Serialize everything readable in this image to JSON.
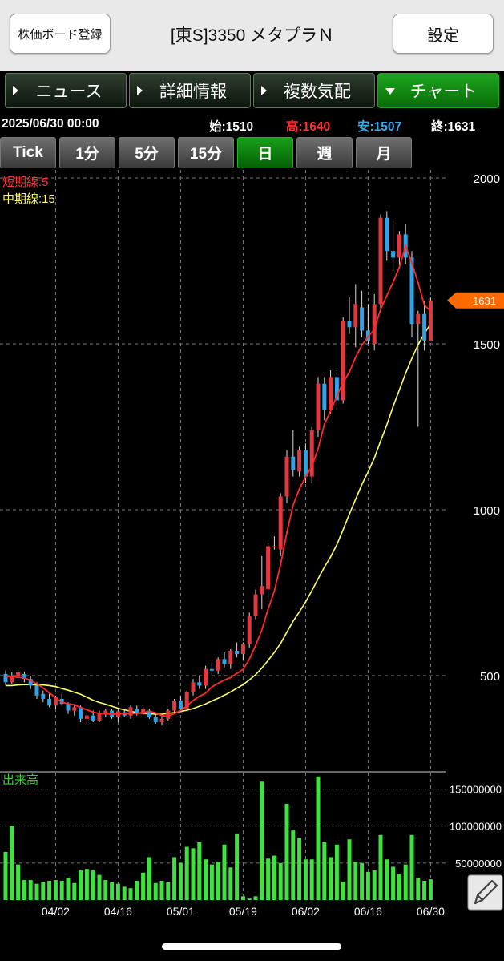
{
  "header": {
    "register_label": "株価ボード登録",
    "title": "[東S]3350 メタプラＮ",
    "settings_label": "設定"
  },
  "tabs": [
    {
      "label": "ニュース",
      "active": false
    },
    {
      "label": "詳細情報",
      "active": false
    },
    {
      "label": "複数気配",
      "active": false
    },
    {
      "label": "チャート",
      "active": true
    }
  ],
  "quote": {
    "datetime": "2025/06/30 00:00",
    "open_label": "始:",
    "open": "1510",
    "high_label": "高:",
    "high": "1640",
    "low_label": "安:",
    "low": "1507",
    "close_label": "終:",
    "close": "1631"
  },
  "ranges": [
    {
      "label": "Tick",
      "active": false
    },
    {
      "label": "1分",
      "active": false
    },
    {
      "label": "5分",
      "active": false
    },
    {
      "label": "15分",
      "active": false
    },
    {
      "label": "日",
      "active": true
    },
    {
      "label": "週",
      "active": false
    },
    {
      "label": "月",
      "active": false
    }
  ],
  "chart_data": {
    "type": "candlestick",
    "price_axis": {
      "ticks": [
        "2000",
        "1500",
        "1000",
        "500"
      ],
      "range": [
        300,
        2000
      ]
    },
    "current_price_tag": "1631",
    "legend": [
      {
        "label": "短期線:5",
        "color": "#ff2a2a"
      },
      {
        "label": "中期線:15",
        "color": "#ffff66"
      }
    ],
    "x_ticks": [
      {
        "label": "04/02",
        "index": 8
      },
      {
        "label": "04/16",
        "index": 18
      },
      {
        "label": "05/01",
        "index": 28
      },
      {
        "label": "05/19",
        "index": 38
      },
      {
        "label": "06/02",
        "index": 48
      },
      {
        "label": "06/16",
        "index": 58
      },
      {
        "label": "06/30",
        "index": 68
      }
    ],
    "candles": [
      [
        505,
        515,
        470,
        480
      ],
      [
        480,
        510,
        475,
        500
      ],
      [
        500,
        520,
        490,
        510
      ],
      [
        505,
        512,
        480,
        490
      ],
      [
        490,
        500,
        460,
        470
      ],
      [
        470,
        480,
        430,
        440
      ],
      [
        445,
        455,
        420,
        430
      ],
      [
        430,
        445,
        405,
        410
      ],
      [
        410,
        440,
        400,
        435
      ],
      [
        430,
        445,
        410,
        415
      ],
      [
        415,
        420,
        385,
        395
      ],
      [
        395,
        415,
        380,
        405
      ],
      [
        405,
        410,
        360,
        370
      ],
      [
        370,
        390,
        355,
        380
      ],
      [
        380,
        395,
        360,
        365
      ],
      [
        365,
        395,
        360,
        385
      ],
      [
        385,
        400,
        375,
        395
      ],
      [
        395,
        400,
        370,
        375
      ],
      [
        375,
        398,
        360,
        393
      ],
      [
        390,
        400,
        375,
        380
      ],
      [
        380,
        410,
        370,
        405
      ],
      [
        400,
        410,
        380,
        385
      ],
      [
        385,
        405,
        380,
        400
      ],
      [
        395,
        400,
        370,
        375
      ],
      [
        375,
        385,
        355,
        360
      ],
      [
        360,
        380,
        350,
        370
      ],
      [
        370,
        400,
        365,
        395
      ],
      [
        395,
        430,
        385,
        425
      ],
      [
        425,
        440,
        395,
        400
      ],
      [
        400,
        455,
        395,
        450
      ],
      [
        450,
        490,
        440,
        480
      ],
      [
        480,
        500,
        460,
        470
      ],
      [
        470,
        530,
        460,
        520
      ],
      [
        520,
        540,
        500,
        515
      ],
      [
        515,
        555,
        505,
        550
      ],
      [
        550,
        570,
        525,
        535
      ],
      [
        535,
        580,
        520,
        575
      ],
      [
        575,
        600,
        555,
        565
      ],
      [
        565,
        600,
        545,
        595
      ],
      [
        595,
        690,
        585,
        680
      ],
      [
        680,
        760,
        670,
        745
      ],
      [
        745,
        860,
        700,
        770
      ],
      [
        760,
        900,
        730,
        890
      ],
      [
        890,
        920,
        880,
        890
      ],
      [
        880,
        1050,
        860,
        1040
      ],
      [
        1040,
        1180,
        1020,
        1160
      ],
      [
        1160,
        1240,
        1100,
        1120
      ],
      [
        1115,
        1190,
        1100,
        1180
      ],
      [
        1180,
        1200,
        1080,
        1100
      ],
      [
        1100,
        1250,
        1080,
        1240
      ],
      [
        1240,
        1400,
        1220,
        1380
      ],
      [
        1380,
        1400,
        1270,
        1300
      ],
      [
        1300,
        1420,
        1290,
        1400
      ],
      [
        1400,
        1420,
        1300,
        1330
      ],
      [
        1330,
        1580,
        1320,
        1570
      ],
      [
        1570,
        1640,
        1530,
        1550
      ],
      [
        1550,
        1680,
        1490,
        1620
      ],
      [
        1610,
        1660,
        1520,
        1540
      ],
      [
        1540,
        1620,
        1500,
        1510
      ],
      [
        1500,
        1650,
        1480,
        1620
      ],
      [
        1620,
        1890,
        1600,
        1880
      ],
      [
        1880,
        1900,
        1750,
        1780
      ],
      [
        1780,
        1870,
        1720,
        1760
      ],
      [
        1760,
        1840,
        1730,
        1830
      ],
      [
        1830,
        1860,
        1740,
        1760
      ],
      [
        1760,
        1780,
        1520,
        1560
      ],
      [
        1560,
        1600,
        1250,
        1590
      ],
      [
        1590,
        1630,
        1480,
        1510
      ],
      [
        1510,
        1640,
        1507,
        1631
      ]
    ],
    "sma5": [
      498,
      497,
      495,
      493,
      486,
      475,
      463,
      448,
      433,
      420,
      415,
      412,
      404,
      397,
      390,
      386,
      385,
      384,
      385,
      386,
      386,
      387,
      389,
      393,
      388,
      380,
      377,
      386,
      395,
      409,
      425,
      438,
      447,
      466,
      477,
      487,
      494,
      507,
      519,
      550,
      591,
      638,
      701,
      755,
      835,
      931,
      1014,
      1063,
      1099,
      1131,
      1184,
      1258,
      1298,
      1343,
      1384,
      1415,
      1460,
      1496,
      1522,
      1543,
      1604,
      1646,
      1686,
      1731,
      1795,
      1744,
      1684,
      1617,
      1599
    ],
    "sma15": [
      470,
      470,
      472,
      473,
      473,
      472,
      472,
      470,
      467,
      461,
      456,
      450,
      444,
      435,
      426,
      419,
      414,
      408,
      402,
      397,
      393,
      389,
      386,
      385,
      384,
      384,
      386,
      389,
      392,
      396,
      401,
      408,
      415,
      424,
      432,
      441,
      451,
      462,
      473,
      487,
      503,
      523,
      546,
      570,
      597,
      631,
      664,
      692,
      722,
      756,
      792,
      827,
      858,
      895,
      940,
      987,
      1032,
      1076,
      1114,
      1156,
      1207,
      1256,
      1311,
      1361,
      1411,
      1456,
      1497,
      1531,
      1560
    ],
    "volume_axis": {
      "ticks": [
        "150000000",
        "100000000",
        "50000000"
      ],
      "range": [
        0,
        170000000
      ]
    },
    "volume_label": "出来高",
    "volume": [
      65,
      100,
      48,
      27,
      27,
      22,
      24,
      26,
      27,
      26,
      30,
      23,
      40,
      42,
      40,
      34,
      27,
      24,
      22,
      18,
      16,
      26,
      37,
      58,
      23,
      26,
      24,
      58,
      50,
      72,
      70,
      78,
      55,
      48,
      52,
      75,
      44,
      90,
      5,
      2,
      5,
      160,
      56,
      60,
      50,
      130,
      94,
      84,
      55,
      55,
      167,
      78,
      58,
      75,
      25,
      82,
      52,
      50,
      38,
      40,
      88,
      55,
      45,
      35,
      48,
      88,
      30,
      26,
      28
    ]
  }
}
